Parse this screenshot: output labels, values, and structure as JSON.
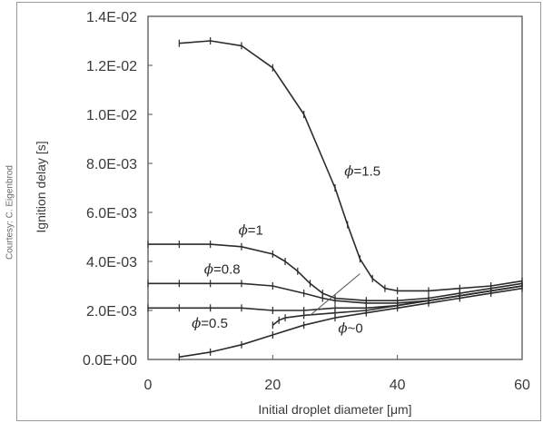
{
  "credit": "Courtesy: C. Eigenbrod",
  "chart_data": {
    "type": "line",
    "title": "",
    "xlabel": "Initial droplet diameter [μm]",
    "ylabel": "Ignition delay [s]",
    "xlim": [
      0,
      60
    ],
    "ylim": [
      0,
      0.014
    ],
    "x_ticks": [
      "0",
      "20",
      "40",
      "60"
    ],
    "y_ticks": [
      "0.0E+00",
      "2.0E-03",
      "4.0E-03",
      "6.0E-03",
      "8.0E-03",
      "1.0E-02",
      "1.2E-02",
      "1.4E-02"
    ],
    "grid": false,
    "series": [
      {
        "x": [
          5,
          10,
          15,
          20,
          25,
          30,
          32,
          34,
          36,
          38,
          40,
          45,
          50,
          55,
          60
        ],
        "y": [
          0.0129,
          0.013,
          0.0128,
          0.0119,
          0.01,
          0.007,
          0.0055,
          0.0041,
          0.0033,
          0.0029,
          0.0028,
          0.0028,
          0.0029,
          0.003,
          0.0032
        ]
      },
      {
        "x": [
          0,
          5,
          10,
          15,
          20,
          22,
          24,
          26,
          28,
          30,
          35,
          40,
          45,
          50,
          55,
          60
        ],
        "y": [
          0.0047,
          0.0047,
          0.0047,
          0.0046,
          0.0043,
          0.004,
          0.0036,
          0.0031,
          0.0027,
          0.0025,
          0.0024,
          0.0024,
          0.0025,
          0.0027,
          0.0029,
          0.0031
        ]
      },
      {
        "x": [
          0,
          5,
          10,
          15,
          20,
          25,
          28,
          30,
          35,
          40,
          45,
          50,
          55,
          60
        ],
        "y": [
          0.0031,
          0.0031,
          0.0031,
          0.0031,
          0.003,
          0.0027,
          0.0025,
          0.0024,
          0.0023,
          0.0023,
          0.0024,
          0.0026,
          0.0028,
          0.003
        ]
      },
      {
        "x": [
          0,
          5,
          10,
          15,
          20,
          25,
          30,
          35,
          40,
          45,
          50,
          55,
          60
        ],
        "y": [
          0.0021,
          0.0021,
          0.0021,
          0.0021,
          0.002,
          0.002,
          0.0021,
          0.0021,
          0.0022,
          0.0024,
          0.0026,
          0.0028,
          0.003
        ]
      },
      {
        "x": [
          20,
          21,
          22,
          25,
          30,
          35,
          40,
          45,
          50,
          55,
          60
        ],
        "y": [
          0.0014,
          0.0016,
          0.0017,
          0.0018,
          0.0019,
          0.002,
          0.0022,
          0.0024,
          0.0026,
          0.0028,
          0.003
        ]
      },
      {
        "x": [
          5,
          10,
          15,
          20,
          25,
          30,
          35,
          40,
          45,
          50,
          55,
          60
        ],
        "y": [
          0.0001,
          0.0003,
          0.0006,
          0.001,
          0.0014,
          0.0017,
          0.0019,
          0.0021,
          0.0023,
          0.0025,
          0.0027,
          0.0029
        ]
      }
    ],
    "annotations": [
      {
        "phi": "ϕ",
        "text": "=1.5",
        "x": 31.5,
        "y": 0.0075
      },
      {
        "phi": "ϕ",
        "text": "=1",
        "x": 14.5,
        "y": 0.0051
      },
      {
        "phi": "ϕ",
        "text": "=0.8",
        "x": 9,
        "y": 0.0035
      },
      {
        "phi": "ϕ",
        "text": "=0.5",
        "x": 7,
        "y": 0.0013
      },
      {
        "phi": "ϕ",
        "text": "~0",
        "x": 30.5,
        "y": 0.0011
      }
    ],
    "leader_line": {
      "from": [
        26,
        0.0018
      ],
      "to": [
        34,
        0.0035
      ]
    }
  }
}
